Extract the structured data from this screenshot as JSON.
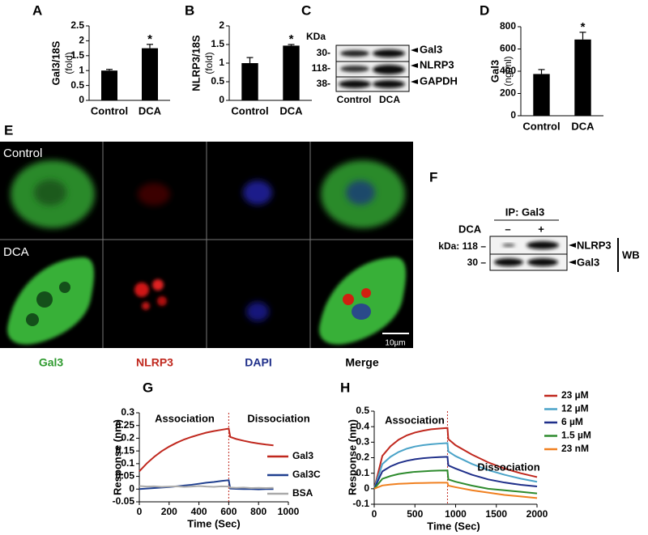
{
  "chart_data": [
    {
      "type": "bar",
      "label": "A",
      "ylabel": [
        "Gal3/18S",
        "(fold)"
      ],
      "categories": [
        "Control",
        "DCA"
      ],
      "values": [
        1.0,
        1.75
      ],
      "errors": [
        0.04,
        0.13
      ],
      "color": "#000000",
      "ylim": [
        0,
        2.5
      ],
      "yticks": [
        0,
        0.5,
        1,
        1.5,
        2,
        2.5
      ],
      "annotations": [
        {
          "text": "*",
          "x": "DCA"
        }
      ]
    },
    {
      "type": "bar",
      "label": "B",
      "ylabel": [
        "NLRP3/18S",
        "(fold)"
      ],
      "categories": [
        "Control",
        "DCA"
      ],
      "values": [
        1.0,
        1.47
      ],
      "errors": [
        0.15,
        0.03
      ],
      "color": "#000000",
      "ylim": [
        0,
        2
      ],
      "yticks": [
        0,
        0.5,
        1,
        1.5,
        2
      ],
      "annotations": [
        {
          "text": "*",
          "x": "DCA"
        }
      ]
    },
    {
      "type": "bar",
      "label": "D",
      "ylabel": [
        "Gal3",
        "(ng/ml)"
      ],
      "categories": [
        "Control",
        "DCA"
      ],
      "values": [
        375,
        685
      ],
      "errors": [
        40,
        65
      ],
      "color": "#000000",
      "ylim": [
        0,
        800
      ],
      "yticks": [
        0,
        200,
        400,
        600,
        800
      ],
      "annotations": [
        {
          "text": "*",
          "x": "DCA"
        }
      ]
    },
    {
      "type": "line",
      "label": "G",
      "ylabel": [
        "Response (nm)"
      ],
      "xlabel": "Time (Sec)",
      "annotations": [
        "Association",
        "Dissociation"
      ],
      "switch_time": 600,
      "x": [
        0,
        50,
        100,
        150,
        200,
        250,
        300,
        350,
        400,
        450,
        500,
        550,
        600,
        610,
        650,
        700,
        750,
        800,
        850,
        900
      ],
      "series": [
        {
          "name": "Gal3",
          "color": "#c0281e",
          "values": [
            0.07,
            0.101,
            0.127,
            0.149,
            0.167,
            0.182,
            0.195,
            0.205,
            0.214,
            0.222,
            0.228,
            0.233,
            0.238,
            0.205,
            0.197,
            0.19,
            0.184,
            0.179,
            0.175,
            0.172
          ]
        },
        {
          "name": "Gal3C",
          "color": "#1f3f8f",
          "values": [
            0,
            0.002,
            0.004,
            0.006,
            0.008,
            0.011,
            0.014,
            0.017,
            0.021,
            0.025,
            0.028,
            0.032,
            0.035,
            0.002,
            0.001,
            0,
            0,
            -0.001,
            0,
            0
          ]
        },
        {
          "name": "BSA",
          "color": "#aaaaaa",
          "values": [
            0.012,
            0.01,
            0.011,
            0.009,
            0.01,
            0.011,
            0.009,
            0.01,
            0.012,
            0.01,
            0.009,
            0.011,
            0.01,
            0.006,
            0.005,
            0.006,
            0.004,
            0.005,
            0.004,
            0.005
          ]
        }
      ],
      "xlim": [
        0,
        1000
      ],
      "xticks": [
        0,
        200,
        400,
        600,
        800,
        1000
      ],
      "ylim": [
        -0.05,
        0.3
      ],
      "yticks": [
        -0.05,
        0,
        0.05,
        0.1,
        0.15,
        0.2,
        0.25,
        0.3
      ]
    },
    {
      "type": "line",
      "label": "H",
      "ylabel": [
        "Response (nm)"
      ],
      "xlabel": "Time (Sec)",
      "annotations": [
        "Association",
        "Dissociation"
      ],
      "switch_time": 900,
      "x": [
        0,
        100,
        200,
        300,
        400,
        500,
        600,
        700,
        800,
        900,
        910,
        1000,
        1200,
        1400,
        1600,
        1800,
        2000
      ],
      "series": [
        {
          "name": "23 µM",
          "color": "#c0281e",
          "values": [
            0,
            0.212,
            0.274,
            0.316,
            0.344,
            0.362,
            0.374,
            0.383,
            0.388,
            0.392,
            0.32,
            0.28,
            0.22,
            0.17,
            0.13,
            0.1,
            0.075
          ]
        },
        {
          "name": "12 µM",
          "color": "#4aa3c8",
          "values": [
            0,
            0.159,
            0.206,
            0.237,
            0.258,
            0.272,
            0.281,
            0.287,
            0.291,
            0.294,
            0.24,
            0.21,
            0.16,
            0.12,
            0.09,
            0.065,
            0.045
          ]
        },
        {
          "name": "6 µM",
          "color": "#1f2f8a",
          "values": [
            0,
            0.112,
            0.144,
            0.166,
            0.18,
            0.19,
            0.197,
            0.201,
            0.204,
            0.206,
            0.15,
            0.13,
            0.09,
            0.06,
            0.04,
            0.025,
            0.015
          ]
        },
        {
          "name": "1.5 µM",
          "color": "#2e8b2e",
          "values": [
            0,
            0.064,
            0.082,
            0.095,
            0.103,
            0.109,
            0.112,
            0.115,
            0.117,
            0.118,
            0.06,
            0.045,
            0.02,
            0,
            -0.01,
            -0.02,
            -0.03
          ]
        },
        {
          "name": "23 nM",
          "color": "#f08020",
          "values": [
            0,
            0.021,
            0.027,
            0.032,
            0.034,
            0.036,
            0.037,
            0.038,
            0.039,
            0.039,
            0.02,
            0.01,
            -0.01,
            -0.025,
            -0.04,
            -0.05,
            -0.06
          ]
        }
      ],
      "xlim": [
        0,
        2000
      ],
      "xticks": [
        0,
        500,
        1000,
        1500,
        2000
      ],
      "ylim": [
        -0.1,
        0.5
      ],
      "yticks": [
        -0.1,
        0,
        0.1,
        0.2,
        0.3,
        0.4,
        0.5
      ]
    }
  ],
  "panel_c": {
    "label": "C",
    "unit": "KDa",
    "markers": [
      "30-",
      "118-",
      "38-"
    ],
    "bands": [
      "Gal3",
      "NLRP3",
      "GAPDH"
    ],
    "lanes": [
      "Control",
      "DCA"
    ]
  },
  "panel_e": {
    "label": "E",
    "rows": [
      "Control",
      "DCA"
    ],
    "channels": [
      "Gal3",
      "NLRP3",
      "DAPI",
      "Merge"
    ],
    "scale_bar": "10µm"
  },
  "panel_f": {
    "label": "F",
    "ip": "IP: Gal3",
    "treatment": "DCA",
    "lanes": [
      "–",
      "+"
    ],
    "markers": [
      "kDa: 118 –",
      "30 –"
    ],
    "bands": [
      "NLRP3",
      "Gal3"
    ],
    "method": "WB"
  }
}
